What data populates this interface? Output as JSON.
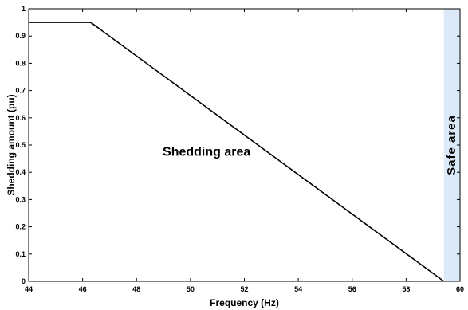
{
  "chart_data": {
    "type": "line",
    "xlabel": "Frequency (Hz)",
    "ylabel": "Shedding amount (pu)",
    "xlim": [
      44,
      60
    ],
    "ylim": [
      0,
      1
    ],
    "xticks": [
      44,
      46,
      48,
      50,
      52,
      54,
      56,
      58,
      60
    ],
    "yticks": [
      0,
      0.1,
      0.2,
      0.3,
      0.4,
      0.5,
      0.6,
      0.7,
      0.8,
      0.9,
      1
    ],
    "grid": false,
    "series": [
      {
        "x": [
          44,
          46.3,
          59.4
        ],
        "y": [
          0.95,
          0.95,
          0
        ]
      }
    ],
    "regions": [
      {
        "label": "Safe area",
        "x_start": 59.4,
        "x_end": 60,
        "color": "#dbe9f8"
      }
    ],
    "annotations": [
      {
        "text": "Shedding area",
        "x": 50.6,
        "y": 0.46
      }
    ],
    "line_color": "#000000"
  }
}
